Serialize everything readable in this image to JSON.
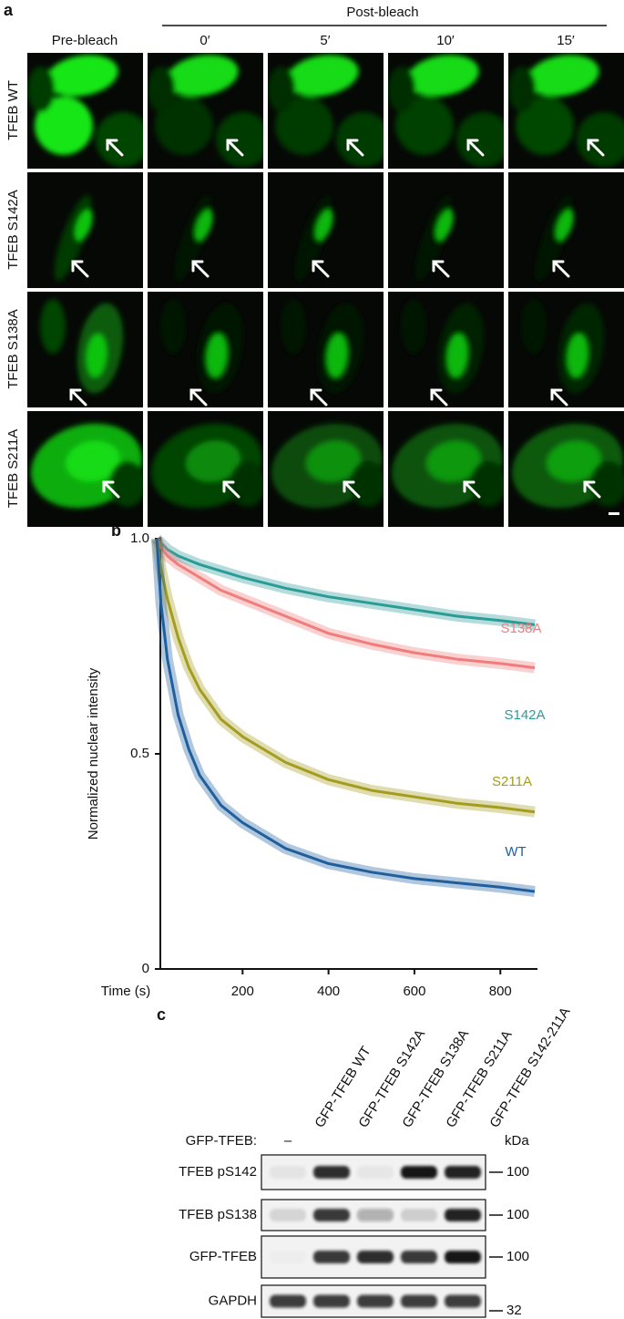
{
  "panel_a": {
    "label": "a",
    "header": "Post-bleach",
    "columns": [
      "Pre-bleach",
      "0′",
      "5′",
      "10′",
      "15′"
    ],
    "rows": [
      "TFEB WT",
      "TFEB S142A",
      "TFEB S138A",
      "TFEB S211A"
    ]
  },
  "panel_b": {
    "label": "b"
  },
  "chart_data": {
    "type": "line",
    "y_label": "Normalized nuclear intensity",
    "x_label": "Time (s)",
    "x": [
      0,
      10,
      25,
      50,
      75,
      100,
      150,
      200,
      300,
      400,
      500,
      600,
      700,
      800,
      880
    ],
    "series": [
      {
        "name": "S142A",
        "color": "#2a9c98",
        "values": [
          1,
          0.99,
          0.975,
          0.96,
          0.95,
          0.94,
          0.925,
          0.91,
          0.885,
          0.865,
          0.85,
          0.835,
          0.82,
          0.81,
          0.8
        ]
      },
      {
        "name": "S138A",
        "color": "#f07c7c",
        "values": [
          1,
          0.98,
          0.96,
          0.94,
          0.925,
          0.91,
          0.88,
          0.86,
          0.82,
          0.78,
          0.755,
          0.735,
          0.72,
          0.71,
          0.7
        ]
      },
      {
        "name": "S211A",
        "color": "#a39c1e",
        "values": [
          1,
          0.93,
          0.86,
          0.77,
          0.7,
          0.65,
          0.58,
          0.54,
          0.48,
          0.44,
          0.415,
          0.4,
          0.385,
          0.375,
          0.365
        ]
      },
      {
        "name": "WT",
        "color": "#1f5f9e",
        "values": [
          1,
          0.85,
          0.72,
          0.59,
          0.51,
          0.45,
          0.38,
          0.34,
          0.28,
          0.245,
          0.225,
          0.21,
          0.2,
          0.19,
          0.18
        ]
      }
    ],
    "xlim": [
      0,
      880
    ],
    "xticks": [
      200,
      400,
      600,
      800
    ],
    "ylim": [
      0,
      1
    ],
    "yticks": [
      0,
      0.5,
      {
        "value": 1,
        "label": "1.0"
      }
    ],
    "grid": false
  },
  "panel_c": {
    "label": "c",
    "lanes": [
      "GFP-TFEB WT",
      "GFP-TFEB S142A",
      "GFP-TFEB S138A",
      "GFP-TFEB S211A",
      "GFP-TFEB S142-211A"
    ],
    "row_header": "GFP-TFEB:",
    "control_mark": "–",
    "kda_label": "kDa",
    "blots": [
      {
        "name": "TFEB pS142",
        "marker": "100"
      },
      {
        "name": "TFEB pS138",
        "marker": "100"
      },
      {
        "name": "GFP-TFEB",
        "marker": "100"
      },
      {
        "name": "GAPDH",
        "marker": "32"
      }
    ]
  }
}
